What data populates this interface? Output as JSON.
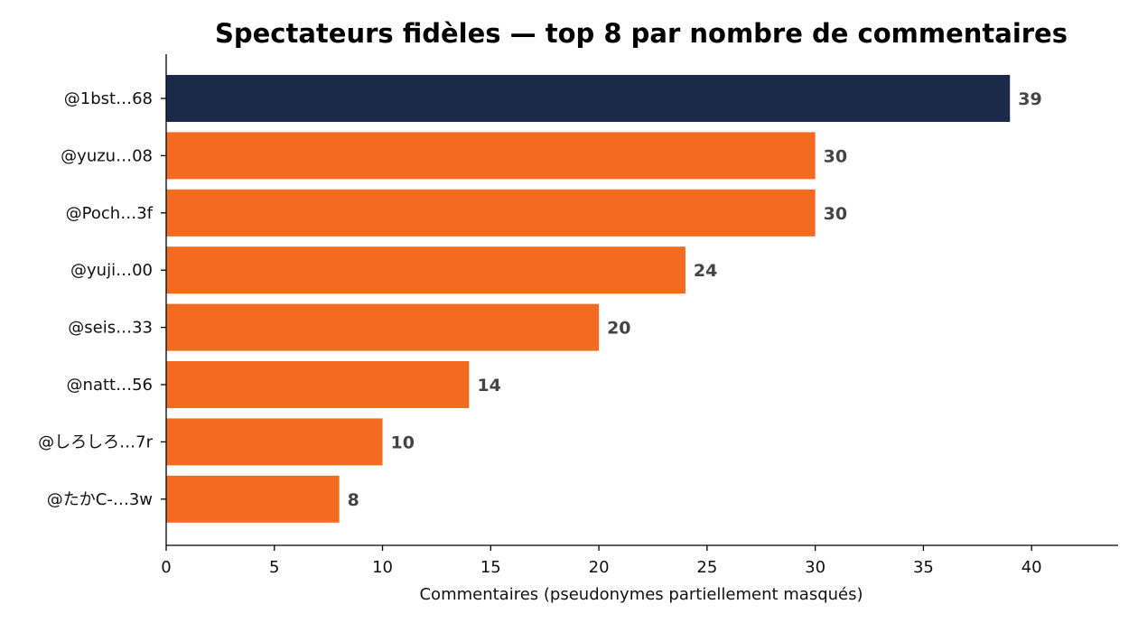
{
  "chart_data": {
    "type": "bar",
    "orientation": "horizontal",
    "title": "Spectateurs fidèles — top 8 par nombre de commentaires",
    "xlabel": "Commentaires (pseudonymes partiellement masqués)",
    "ylabel": "",
    "categories": [
      "@1bst…68",
      "@yuzu…08",
      "@Poch…3f",
      "@yuji…00",
      "@seis…33",
      "@natt…56",
      "@しろしろ…7r",
      "@たかC-…3w"
    ],
    "values": [
      39,
      30,
      30,
      24,
      20,
      14,
      10,
      8
    ],
    "value_labels": [
      "39",
      "30",
      "30",
      "24",
      "20",
      "14",
      "10",
      "8"
    ],
    "xlim": [
      0,
      44
    ],
    "xticks": [
      0,
      5,
      10,
      15,
      20,
      25,
      30,
      35,
      40
    ],
    "grid": false,
    "colors": {
      "highlight": "#1c2a4a",
      "default": "#f26b21"
    },
    "highlight_index": 0
  }
}
